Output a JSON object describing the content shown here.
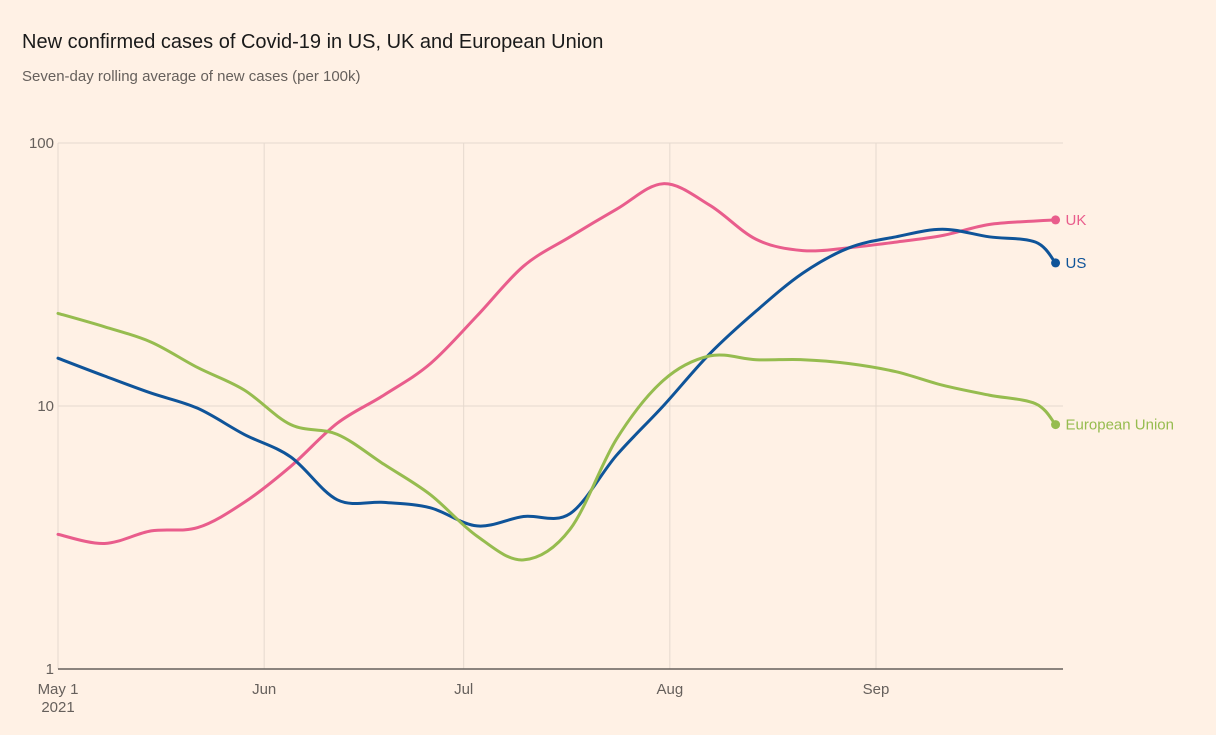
{
  "chart_data": {
    "type": "line",
    "title": "New confirmed cases of Covid-19 in US, UK and European Union",
    "subtitle": "Seven-day rolling average of new cases (per 100k)",
    "xlabel": "",
    "ylabel": "",
    "yscale": "log",
    "ylim": [
      1,
      100
    ],
    "y_ticks": [
      {
        "value": 1,
        "label": "1"
      },
      {
        "value": 10,
        "label": "10"
      },
      {
        "value": 100,
        "label": "100"
      }
    ],
    "x_start": "2021-05-01",
    "x_ticks": [
      {
        "day": 0,
        "label": "May 1",
        "sublabel": "2021"
      },
      {
        "day": 31,
        "label": "Jun",
        "sublabel": ""
      },
      {
        "day": 61,
        "label": "Jul",
        "sublabel": ""
      },
      {
        "day": 92,
        "label": "Aug",
        "sublabel": ""
      },
      {
        "day": 123,
        "label": "Sep",
        "sublabel": ""
      }
    ],
    "xlim_days": [
      0,
      151
    ],
    "grid": true,
    "legend": "direct labels at line ends (right)",
    "x": [
      0,
      7,
      14,
      21,
      28,
      35,
      42,
      49,
      56,
      63,
      70,
      77,
      84,
      91,
      98,
      105,
      112,
      119,
      126,
      133,
      140,
      147,
      150
    ],
    "series": [
      {
        "name": "UK",
        "color": "#e95d8c",
        "values": [
          3.25,
          3.0,
          3.35,
          3.45,
          4.3,
          5.9,
          8.6,
          11.0,
          14.5,
          22.0,
          34.0,
          44.0,
          56.0,
          70.0,
          58.0,
          43.0,
          39.0,
          40.0,
          42.0,
          44.5,
          49.0,
          50.5,
          51.0
        ]
      },
      {
        "name": "US",
        "color": "#0f5499",
        "values": [
          15.2,
          13.0,
          11.2,
          9.8,
          7.8,
          6.4,
          4.4,
          4.3,
          4.1,
          3.5,
          3.8,
          3.9,
          6.5,
          10.0,
          15.8,
          23.0,
          32.0,
          40.0,
          44.0,
          47.0,
          44.0,
          42.0,
          35.0
        ]
      },
      {
        "name": "European Union",
        "color": "#96bc4f",
        "values": [
          22.5,
          20.0,
          17.5,
          14.0,
          11.5,
          8.5,
          7.8,
          6.0,
          4.6,
          3.2,
          2.6,
          3.4,
          7.5,
          12.5,
          15.5,
          15.0,
          15.0,
          14.5,
          13.5,
          12.0,
          11.0,
          10.2,
          8.5
        ]
      }
    ]
  }
}
